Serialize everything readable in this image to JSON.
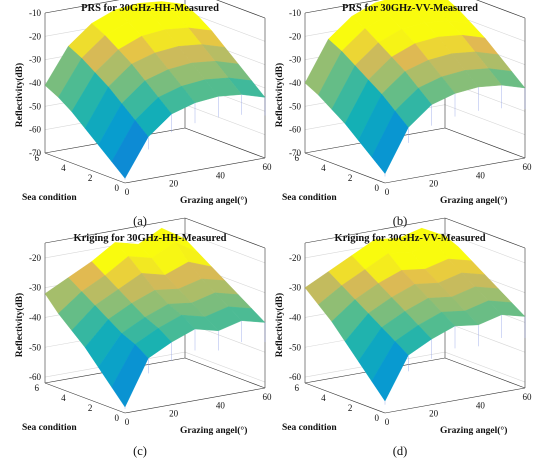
{
  "chart_data": [
    {
      "type": "surface3d",
      "title": "PRS for 30GHz-HH-Measured",
      "caption": "(a)",
      "xlabel": "Grazing angel(°)",
      "ylabel": "Sea condition",
      "zlabel": "Reflectivity(dB)",
      "xticks": [
        "0",
        "20",
        "40",
        "60"
      ],
      "yticks": [
        "0",
        "2",
        "4",
        "6"
      ],
      "zticks": [
        "-10",
        "-20",
        "-30",
        "-40",
        "-50",
        "-60",
        "-70"
      ],
      "xlim": [
        0,
        60
      ],
      "ylim": [
        0,
        6
      ],
      "zlim": [
        -70,
        -10
      ],
      "surface": {
        "x": [
          0,
          10,
          20,
          30,
          40,
          50,
          60
        ],
        "y": [
          0,
          1,
          2,
          3,
          4,
          5,
          6
        ],
        "z": [
          [
            -68,
            -52,
            -44,
            -41,
            -40,
            -41,
            -44
          ],
          [
            -63,
            -47,
            -39,
            -36,
            -35,
            -36,
            -39
          ],
          [
            -58,
            -42,
            -34,
            -31,
            -30,
            -31,
            -34
          ],
          [
            -53,
            -37,
            -29,
            -26,
            -25,
            -26,
            -29
          ],
          [
            -48,
            -33,
            -25,
            -21,
            -20,
            -21,
            -24
          ],
          [
            -44,
            -29,
            -21,
            -17,
            -16,
            -17,
            -20
          ],
          [
            -41,
            -26,
            -18,
            -14,
            -13,
            -14,
            -17
          ]
        ]
      }
    },
    {
      "type": "surface3d",
      "title": "PRS for 30GHz-VV-Measured",
      "caption": "(b)",
      "xlabel": "Grazing angel(°)",
      "ylabel": "Sea condition",
      "zlabel": "Reflectivity(dB)",
      "xticks": [
        "0",
        "20",
        "40",
        "60"
      ],
      "yticks": [
        "0",
        "2",
        "4",
        "6"
      ],
      "zticks": [
        "-10",
        "-20",
        "-30",
        "-40",
        "-50",
        "-60",
        "-70"
      ],
      "xlim": [
        0,
        60
      ],
      "ylim": [
        0,
        6
      ],
      "zlim": [
        -70,
        -10
      ],
      "surface": {
        "x": [
          0,
          10,
          20,
          30,
          40,
          50,
          60
        ],
        "y": [
          0,
          1,
          2,
          3,
          4,
          5,
          6
        ],
        "z": [
          [
            -66,
            -48,
            -40,
            -37,
            -36,
            -37,
            -40
          ],
          [
            -61,
            -43,
            -35,
            -32,
            -31,
            -32,
            -35
          ],
          [
            -56,
            -38,
            -30,
            -27,
            -26,
            -27,
            -30
          ],
          [
            -51,
            -34,
            -26,
            -22,
            -21,
            -22,
            -25
          ],
          [
            -47,
            -30,
            -22,
            -18,
            -17,
            -18,
            -21
          ],
          [
            -43,
            -26,
            -18,
            -14,
            -13,
            -14,
            -17
          ],
          [
            -40,
            -23,
            -15,
            -11,
            -10,
            -11,
            -14
          ]
        ]
      }
    },
    {
      "type": "surface3d",
      "title": "Kriging for 30GHz-HH-Measured",
      "caption": "(c)",
      "xlabel": "Grazing angel(°)",
      "ylabel": "Sea condition",
      "zlabel": "Reflectivity(dB)",
      "xticks": [
        "0",
        "20",
        "40",
        "60"
      ],
      "yticks": [
        "0",
        "2",
        "4",
        "6"
      ],
      "zticks": [
        "-20",
        "-30",
        "-40",
        "-50",
        "-60"
      ],
      "xlim": [
        0,
        60
      ],
      "ylim": [
        0,
        6
      ],
      "zlim": [
        -62,
        -15
      ],
      "surface": {
        "x": [
          0,
          10,
          20,
          30,
          40,
          50,
          60
        ],
        "y": [
          0,
          1,
          2,
          3,
          4,
          5,
          6
        ],
        "z": [
          [
            -60,
            -45,
            -41,
            -38,
            -40,
            -38,
            -40
          ],
          [
            -55,
            -42,
            -38,
            -35,
            -37,
            -35,
            -37
          ],
          [
            -50,
            -40,
            -36,
            -33,
            -34,
            -32,
            -34
          ],
          [
            -45,
            -37,
            -33,
            -30,
            -31,
            -29,
            -31
          ],
          [
            -41,
            -34,
            -30,
            -26,
            -28,
            -25,
            -28
          ],
          [
            -37,
            -31,
            -27,
            -22,
            -24,
            -20,
            -25
          ],
          [
            -32,
            -28,
            -24,
            -19,
            -21,
            -17,
            -22
          ]
        ]
      }
    },
    {
      "type": "surface3d",
      "title": "Kriging for 30GHz-VV-Measured",
      "caption": "(d)",
      "xlabel": "Grazing angel(°)",
      "ylabel": "Sea condition",
      "zlabel": "Reflectivity(dB)",
      "xticks": [
        "0",
        "20",
        "40",
        "60"
      ],
      "yticks": [
        "0",
        "2",
        "4",
        "6"
      ],
      "zticks": [
        "-20",
        "-30",
        "-40",
        "-50",
        "-60"
      ],
      "xlim": [
        0,
        60
      ],
      "ylim": [
        0,
        6
      ],
      "zlim": [
        -62,
        -15
      ],
      "surface": {
        "x": [
          0,
          10,
          20,
          30,
          40,
          50,
          60
        ],
        "y": [
          0,
          1,
          2,
          3,
          4,
          5,
          6
        ],
        "z": [
          [
            -58,
            -44,
            -40,
            -37,
            -38,
            -36,
            -38
          ],
          [
            -53,
            -41,
            -37,
            -34,
            -35,
            -33,
            -35
          ],
          [
            -48,
            -38,
            -34,
            -31,
            -32,
            -30,
            -32
          ],
          [
            -43,
            -35,
            -31,
            -28,
            -29,
            -27,
            -29
          ],
          [
            -38,
            -32,
            -28,
            -25,
            -26,
            -24,
            -26
          ],
          [
            -34,
            -29,
            -25,
            -21,
            -22,
            -20,
            -23
          ],
          [
            -30,
            -26,
            -22,
            -18,
            -19,
            -17,
            -21
          ]
        ]
      }
    }
  ]
}
